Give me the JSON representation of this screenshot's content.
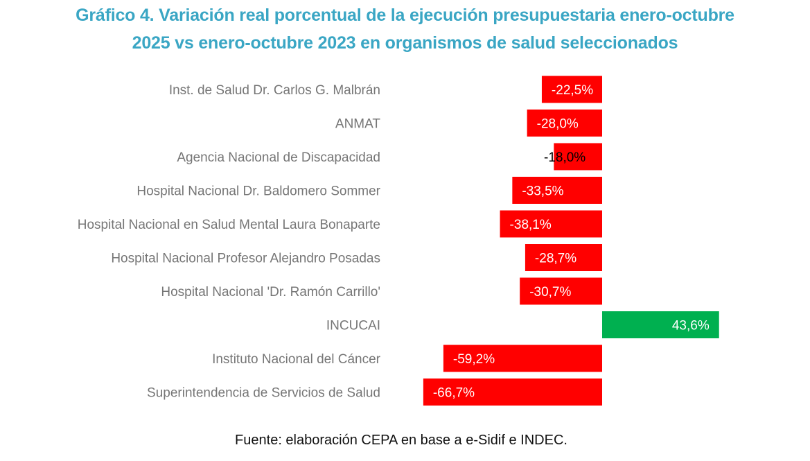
{
  "title_line1": "Gráfico 4. Variación real porcentual de la ejecución presupuestaria enero-octubre",
  "title_line2": "2025 vs enero-octubre 2023 en organismos de salud seleccionados",
  "source": "Fuente: elaboración CEPA en base a e-Sidif e INDEC.",
  "colors": {
    "negative": "#ff0000",
    "positive": "#00b050",
    "title": "#3aa6c4"
  },
  "chart_data": {
    "type": "bar",
    "orientation": "horizontal",
    "title": "Gráfico 4. Variación real porcentual de la ejecución presupuestaria enero-octubre 2025 vs enero-octubre 2023 en organismos de salud seleccionados",
    "xlabel": "",
    "ylabel": "",
    "grid": false,
    "legend": "none",
    "xlim": [
      -66.7,
      43.6
    ],
    "categories": [
      "Inst. de Salud Dr. Carlos G. Malbrán",
      "ANMAT",
      "Agencia Nacional de Discapacidad",
      "Hospital Nacional Dr. Baldomero Sommer",
      "Hospital Nacional en Salud Mental Laura Bonaparte",
      "Hospital Nacional Profesor Alejandro Posadas",
      "Hospital Nacional 'Dr. Ramón Carrillo'",
      "INCUCAI",
      "Instituto Nacional del Cáncer",
      "Superintendencia de Servicios de Salud"
    ],
    "values": [
      -22.5,
      -28.0,
      -18.0,
      -33.5,
      -38.1,
      -28.7,
      -30.7,
      43.6,
      -59.2,
      -66.7
    ],
    "data_labels": [
      "-22,5%",
      "-28,0%",
      "-18,0%",
      "-33,5%",
      "-38,1%",
      "-28,7%",
      "-30,7%",
      "43,6%",
      "-59,2%",
      "-66,7%"
    ]
  }
}
